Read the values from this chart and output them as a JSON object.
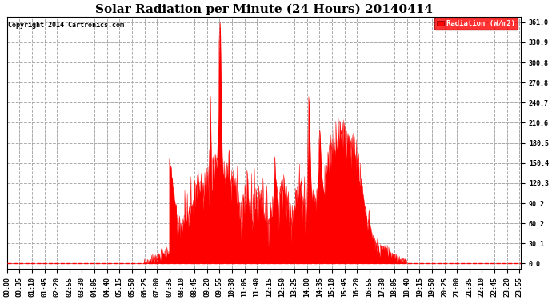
{
  "title": "Solar Radiation per Minute (24 Hours) 20140414",
  "copyright": "Copyright 2014 Cartronics.com",
  "ylabel": "Radiation (W/m2)",
  "yticks": [
    0.0,
    30.1,
    60.2,
    90.2,
    120.3,
    150.4,
    180.5,
    210.6,
    240.7,
    270.8,
    300.8,
    330.9,
    361.0
  ],
  "ymax": 361.0,
  "ymin": 0.0,
  "fill_color": "#FF0000",
  "bg_color": "#FFFFFF",
  "grid_color": "#AAAAAA",
  "title_fontsize": 11,
  "tick_fontsize": 6,
  "zero_line_color": "#FF0000",
  "sunrise_min": 385,
  "sunset_min": 1120,
  "big_spike_min": 597,
  "big_spike_val": 361.0
}
